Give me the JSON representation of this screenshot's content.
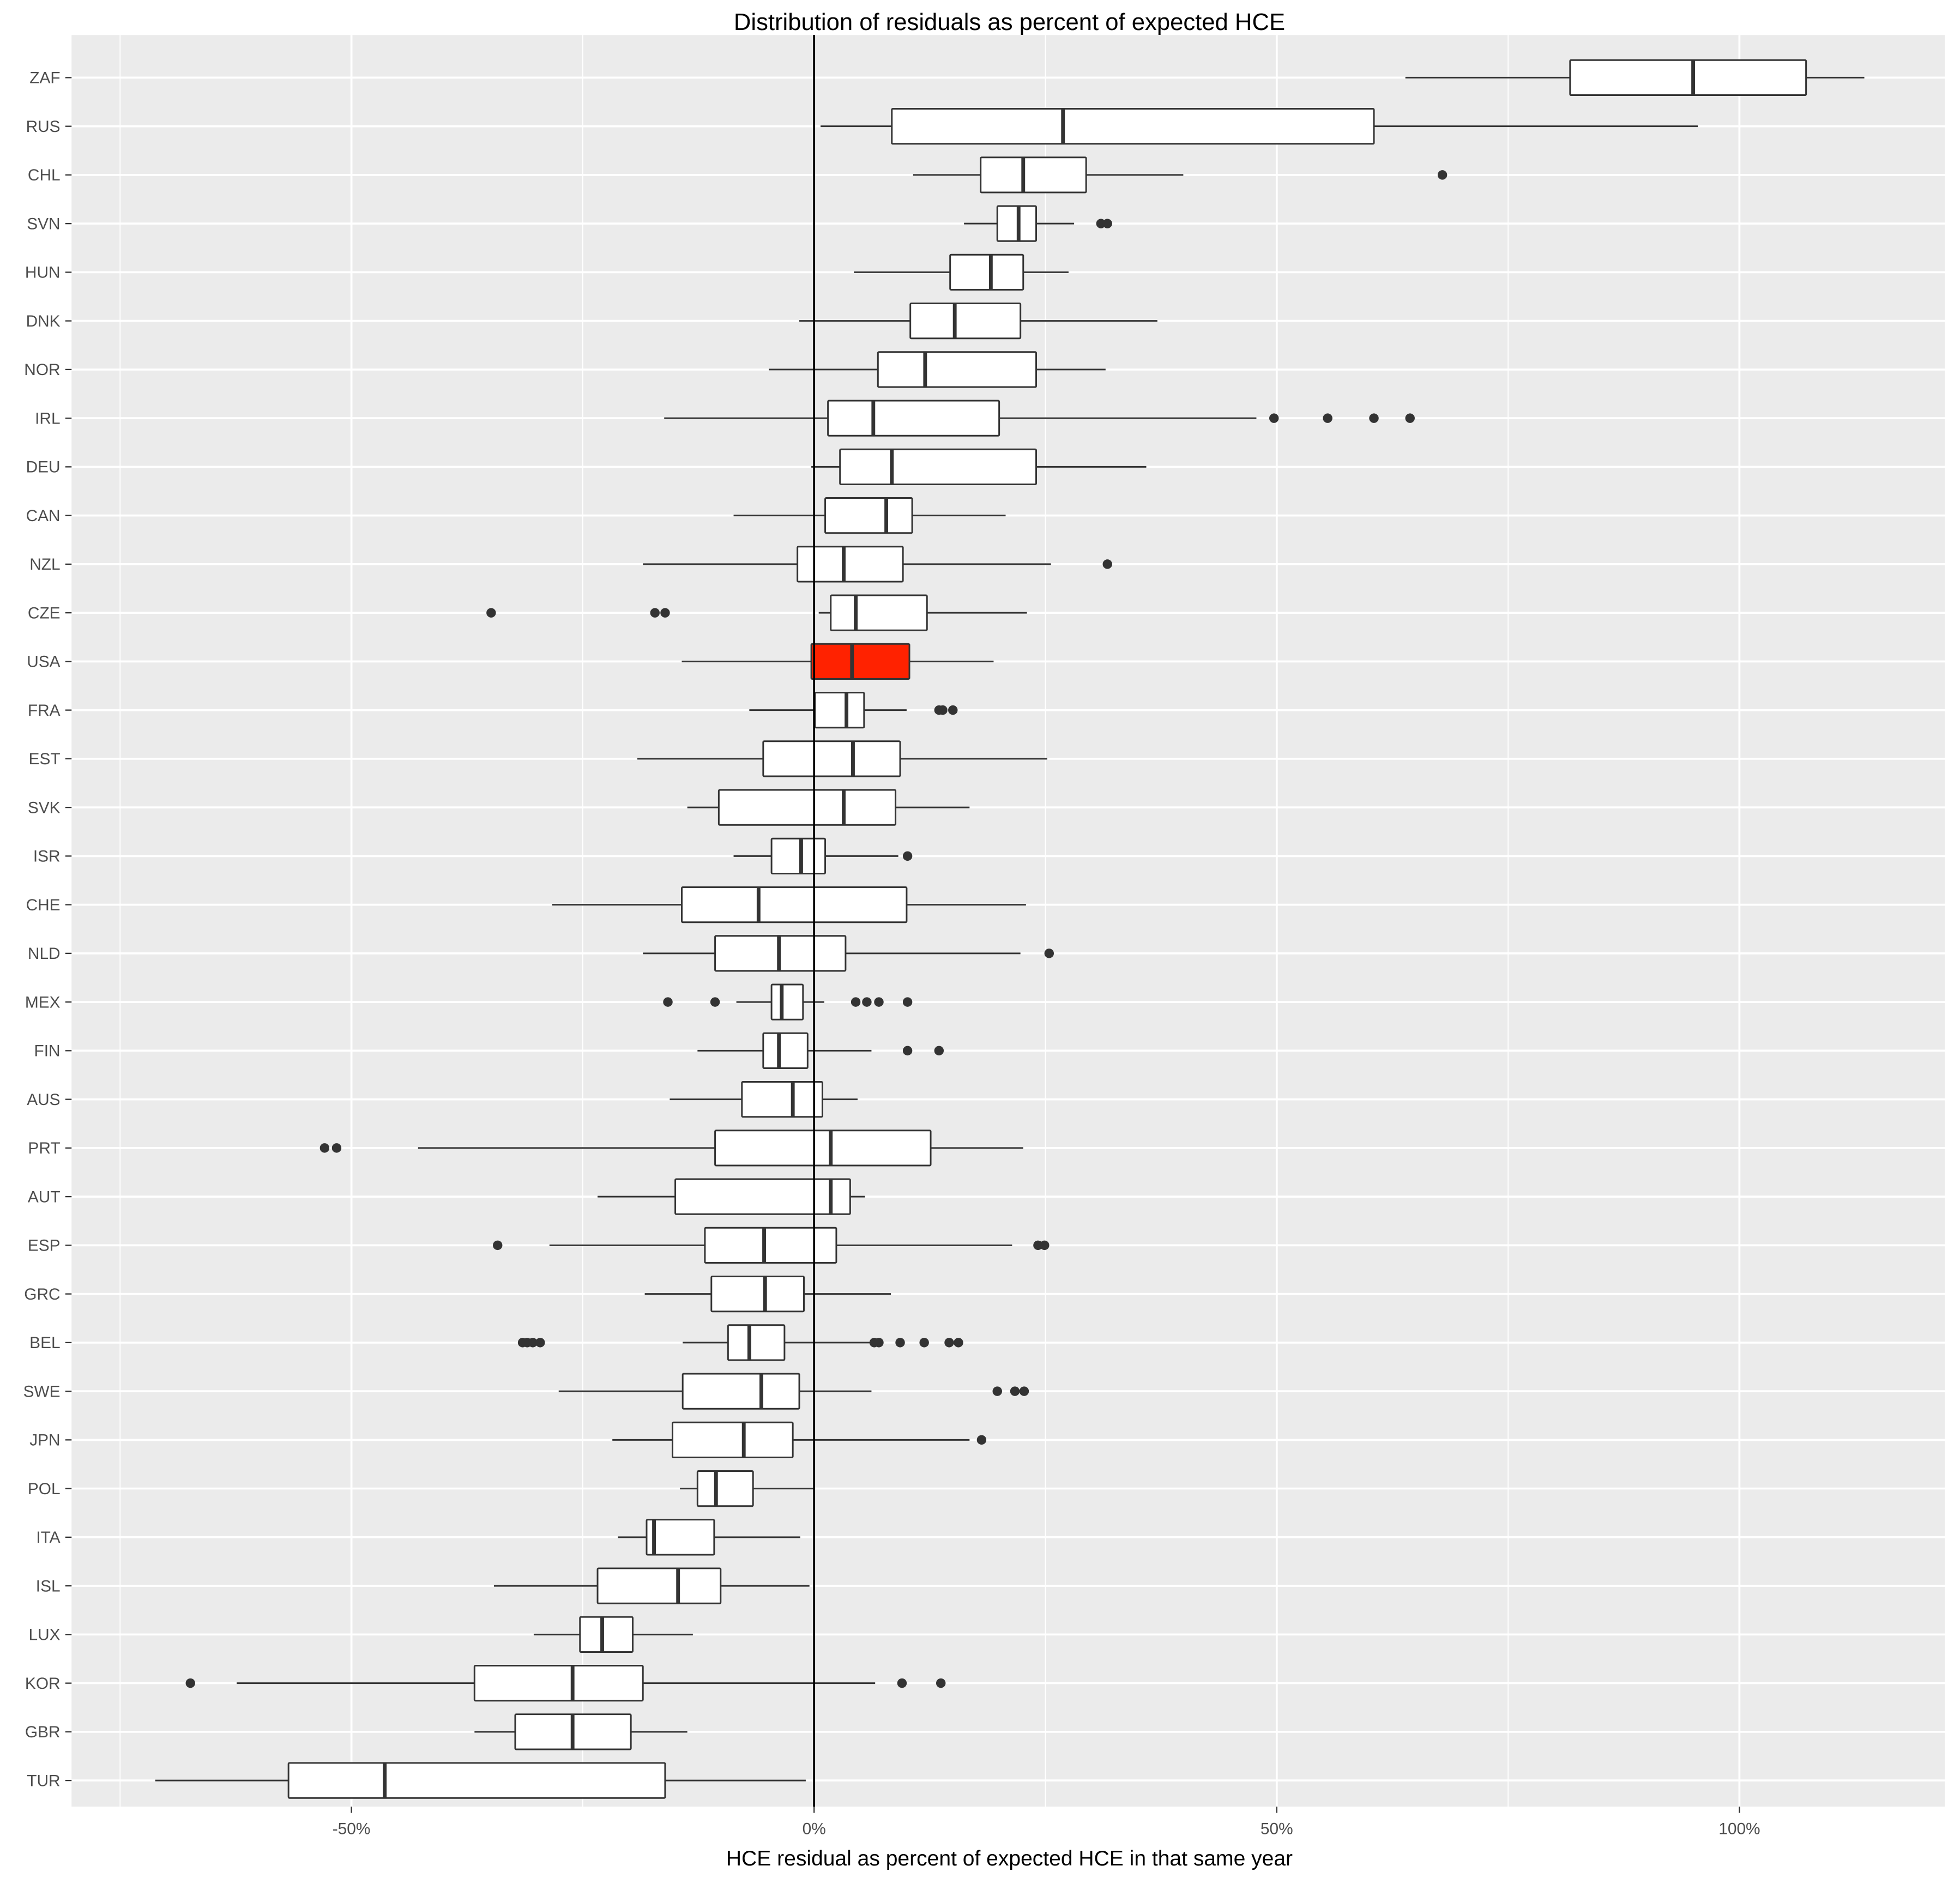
{
  "chart_data": {
    "type": "boxplot",
    "title": "Distribution of residuals as percent of expected HCE",
    "xlabel": "HCE residual as percent of expected HCE in that same year",
    "ylabel": "",
    "xlim": [
      -75,
      122
    ],
    "x_ticks": [
      -50,
      0,
      50,
      100
    ],
    "x_tick_labels": [
      "-50%",
      "0%",
      "50%",
      "100%"
    ],
    "grid": true,
    "highlight_color": "#ff2200",
    "box_color": "#ffffff",
    "reference_line": 0,
    "series": [
      {
        "name": "ZAF",
        "whisker_low": 63.9,
        "q1": 81.7,
        "median": 95,
        "q3": 107.2,
        "whisker_high": 113.5,
        "outliers": []
      },
      {
        "name": "RUS",
        "whisker_low": 0.7,
        "q1": 8.4,
        "median": 26.9,
        "q3": 60.5,
        "whisker_high": 95.5,
        "outliers": []
      },
      {
        "name": "CHL",
        "whisker_low": 10.7,
        "q1": 18,
        "median": 22.6,
        "q3": 29.4,
        "whisker_high": 39.9,
        "outliers": [
          67.9
        ]
      },
      {
        "name": "SVN",
        "whisker_low": 16.2,
        "q1": 19.8,
        "median": 22.1,
        "q3": 24,
        "whisker_high": 28.1,
        "outliers": [
          31,
          31.7
        ]
      },
      {
        "name": "HUN",
        "whisker_low": 4.3,
        "q1": 14.7,
        "median": 19.1,
        "q3": 22.6,
        "whisker_high": 27.5,
        "outliers": []
      },
      {
        "name": "DNK",
        "whisker_low": -1.6,
        "q1": 10.4,
        "median": 15.2,
        "q3": 22.3,
        "whisker_high": 37.1,
        "outliers": []
      },
      {
        "name": "NOR",
        "whisker_low": -4.9,
        "q1": 6.9,
        "median": 12,
        "q3": 24,
        "whisker_high": 31.5,
        "outliers": []
      },
      {
        "name": "IRL",
        "whisker_low": -16.2,
        "q1": 1.5,
        "median": 6.4,
        "q3": 20,
        "whisker_high": 47.8,
        "outliers": [
          49.7,
          55.5,
          60.5,
          64.4
        ]
      },
      {
        "name": "DEU",
        "whisker_low": -0.3,
        "q1": 2.8,
        "median": 8.4,
        "q3": 24,
        "whisker_high": 35.9,
        "outliers": []
      },
      {
        "name": "CAN",
        "whisker_low": -8.7,
        "q1": 1.2,
        "median": 7.8,
        "q3": 10.6,
        "whisker_high": 20.7,
        "outliers": []
      },
      {
        "name": "NZL",
        "whisker_low": -18.5,
        "q1": -1.8,
        "median": 3.2,
        "q3": 9.6,
        "whisker_high": 25.6,
        "outliers": [
          31.7
        ]
      },
      {
        "name": "CZE",
        "whisker_low": 0.5,
        "q1": 1.8,
        "median": 4.5,
        "q3": 12.2,
        "whisker_high": 23,
        "outliers": [
          -34.9,
          -17.2,
          -16.1
        ]
      },
      {
        "name": "USA",
        "whisker_low": -14.3,
        "q1": -0.3,
        "median": 4.1,
        "q3": 10.3,
        "whisker_high": 19.4,
        "outliers": [],
        "highlight": true
      },
      {
        "name": "FRA",
        "whisker_low": -7,
        "q1": 0.1,
        "median": 3.5,
        "q3": 5.4,
        "whisker_high": 10,
        "outliers": [
          13.5,
          13.9,
          15
        ]
      },
      {
        "name": "EST",
        "whisker_low": -19.1,
        "q1": -5.5,
        "median": 4.2,
        "q3": 9.3,
        "whisker_high": 25.2,
        "outliers": []
      },
      {
        "name": "SVK",
        "whisker_low": -13.7,
        "q1": -10.3,
        "median": 3.2,
        "q3": 8.8,
        "whisker_high": 16.8,
        "outliers": []
      },
      {
        "name": "ISR",
        "whisker_low": -8.7,
        "q1": -4.6,
        "median": -1.4,
        "q3": 1.2,
        "whisker_high": 9.1,
        "outliers": [
          10.1
        ]
      },
      {
        "name": "CHE",
        "whisker_low": -28.3,
        "q1": -14.3,
        "median": -6,
        "q3": 10,
        "whisker_high": 22.9,
        "outliers": []
      },
      {
        "name": "NLD",
        "whisker_low": -18.5,
        "q1": -10.7,
        "median": -3.8,
        "q3": 3.4,
        "whisker_high": 22.3,
        "outliers": [
          25.4
        ]
      },
      {
        "name": "MEX",
        "whisker_low": -8.4,
        "q1": -4.6,
        "median": -3.5,
        "q3": -1.2,
        "whisker_high": 1.1,
        "outliers": [
          -15.8,
          -10.7,
          4.5,
          5.7,
          7,
          10.1
        ]
      },
      {
        "name": "FIN",
        "whisker_low": -12.6,
        "q1": -5.5,
        "median": -3.8,
        "q3": -0.7,
        "whisker_high": 6.2,
        "outliers": [
          10.1,
          13.5
        ]
      },
      {
        "name": "AUS",
        "whisker_low": -15.6,
        "q1": -7.8,
        "median": -2.3,
        "q3": 0.9,
        "whisker_high": 4.7,
        "outliers": []
      },
      {
        "name": "PRT",
        "whisker_low": -42.8,
        "q1": -10.7,
        "median": 1.8,
        "q3": 12.6,
        "whisker_high": 22.6,
        "outliers": [
          -52.9,
          -51.6
        ]
      },
      {
        "name": "AUT",
        "whisker_low": -23.4,
        "q1": -15,
        "median": 1.8,
        "q3": 3.9,
        "whisker_high": 5.5,
        "outliers": []
      },
      {
        "name": "ESP",
        "whisker_low": -28.6,
        "q1": -11.8,
        "median": -5.4,
        "q3": 2.4,
        "whisker_high": 21.4,
        "outliers": [
          -34.2,
          24.2,
          24.9
        ]
      },
      {
        "name": "GRC",
        "whisker_low": -18.3,
        "q1": -11.1,
        "median": -5.3,
        "q3": -1.1,
        "whisker_high": 8.3,
        "outliers": []
      },
      {
        "name": "BEL",
        "whisker_low": -14.2,
        "q1": -9.3,
        "median": -7,
        "q3": -3.2,
        "whisker_high": 7,
        "outliers": [
          -31.5,
          -31,
          -30.4,
          -29.6,
          6.5,
          7,
          9.3,
          11.9,
          14.6,
          15.6
        ]
      },
      {
        "name": "SWE",
        "whisker_low": -27.6,
        "q1": -14.2,
        "median": -5.7,
        "q3": -1.6,
        "whisker_high": 6.2,
        "outliers": [
          19.8,
          21.7,
          22.7
        ]
      },
      {
        "name": "JPN",
        "whisker_low": -21.8,
        "q1": -15.3,
        "median": -7.6,
        "q3": -2.3,
        "whisker_high": 16.8,
        "outliers": [
          18.1
        ]
      },
      {
        "name": "POL",
        "whisker_low": -14.5,
        "q1": -12.6,
        "median": -10.6,
        "q3": -6.6,
        "whisker_high": 0,
        "outliers": []
      },
      {
        "name": "ITA",
        "whisker_low": -21.2,
        "q1": -18.1,
        "median": -17.3,
        "q3": -10.8,
        "whisker_high": -1.5,
        "outliers": []
      },
      {
        "name": "ISL",
        "whisker_low": -34.6,
        "q1": -23.4,
        "median": -14.7,
        "q3": -10.1,
        "whisker_high": -0.5,
        "outliers": []
      },
      {
        "name": "LUX",
        "whisker_low": -30.3,
        "q1": -25.3,
        "median": -22.9,
        "q3": -19.6,
        "whisker_high": -13.1,
        "outliers": []
      },
      {
        "name": "KOR",
        "whisker_low": -62.4,
        "q1": -36.7,
        "median": -26.1,
        "q3": -18.5,
        "whisker_high": 6.6,
        "outliers": [
          -67.4,
          9.5,
          13.7
        ]
      },
      {
        "name": "GBR",
        "whisker_low": -36.7,
        "q1": -32.3,
        "median": -26.1,
        "q3": -19.8,
        "whisker_high": -13.7,
        "outliers": []
      },
      {
        "name": "TUR",
        "whisker_low": -71.2,
        "q1": -56.8,
        "median": -46.4,
        "q3": -16.1,
        "whisker_high": -0.9,
        "outliers": []
      }
    ]
  }
}
